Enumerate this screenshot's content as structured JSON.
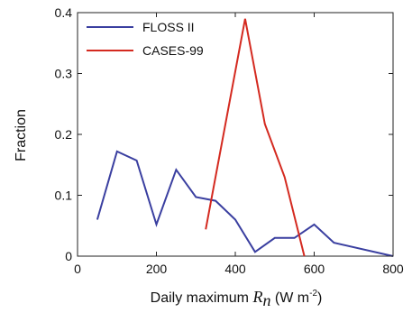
{
  "chart_data": {
    "type": "line",
    "xlabel_parts": {
      "prefix": "Daily maximum ",
      "symbol": "R",
      "subscript": "n",
      "unit_open": " (W m",
      "superscript": "-2",
      "unit_close": ")"
    },
    "ylabel": "Fraction",
    "xlim": [
      0,
      800
    ],
    "ylim": [
      0,
      0.4
    ],
    "x_ticks": [
      0,
      200,
      400,
      600,
      800
    ],
    "y_ticks": [
      0,
      0.1,
      0.2,
      0.3,
      0.4
    ],
    "y_tick_labels": [
      "0",
      "0.1",
      "0.2",
      "0.3",
      "0.4"
    ],
    "legend_position": "top-left",
    "grid": false,
    "series": [
      {
        "name": "FLOSS II",
        "color": "#3a3fa0",
        "x": [
          50,
          100,
          150,
          200,
          250,
          300,
          350,
          400,
          450,
          500,
          550,
          600,
          650,
          800
        ],
        "y": [
          0.06,
          0.172,
          0.157,
          0.052,
          0.142,
          0.097,
          0.091,
          0.06,
          0.007,
          0.03,
          0.03,
          0.052,
          0.022,
          0.0
        ]
      },
      {
        "name": "CASES-99",
        "color": "#d42a20",
        "x": [
          325,
          425,
          475,
          525,
          575
        ],
        "y": [
          0.044,
          0.39,
          0.217,
          0.13,
          0.0
        ]
      }
    ]
  }
}
